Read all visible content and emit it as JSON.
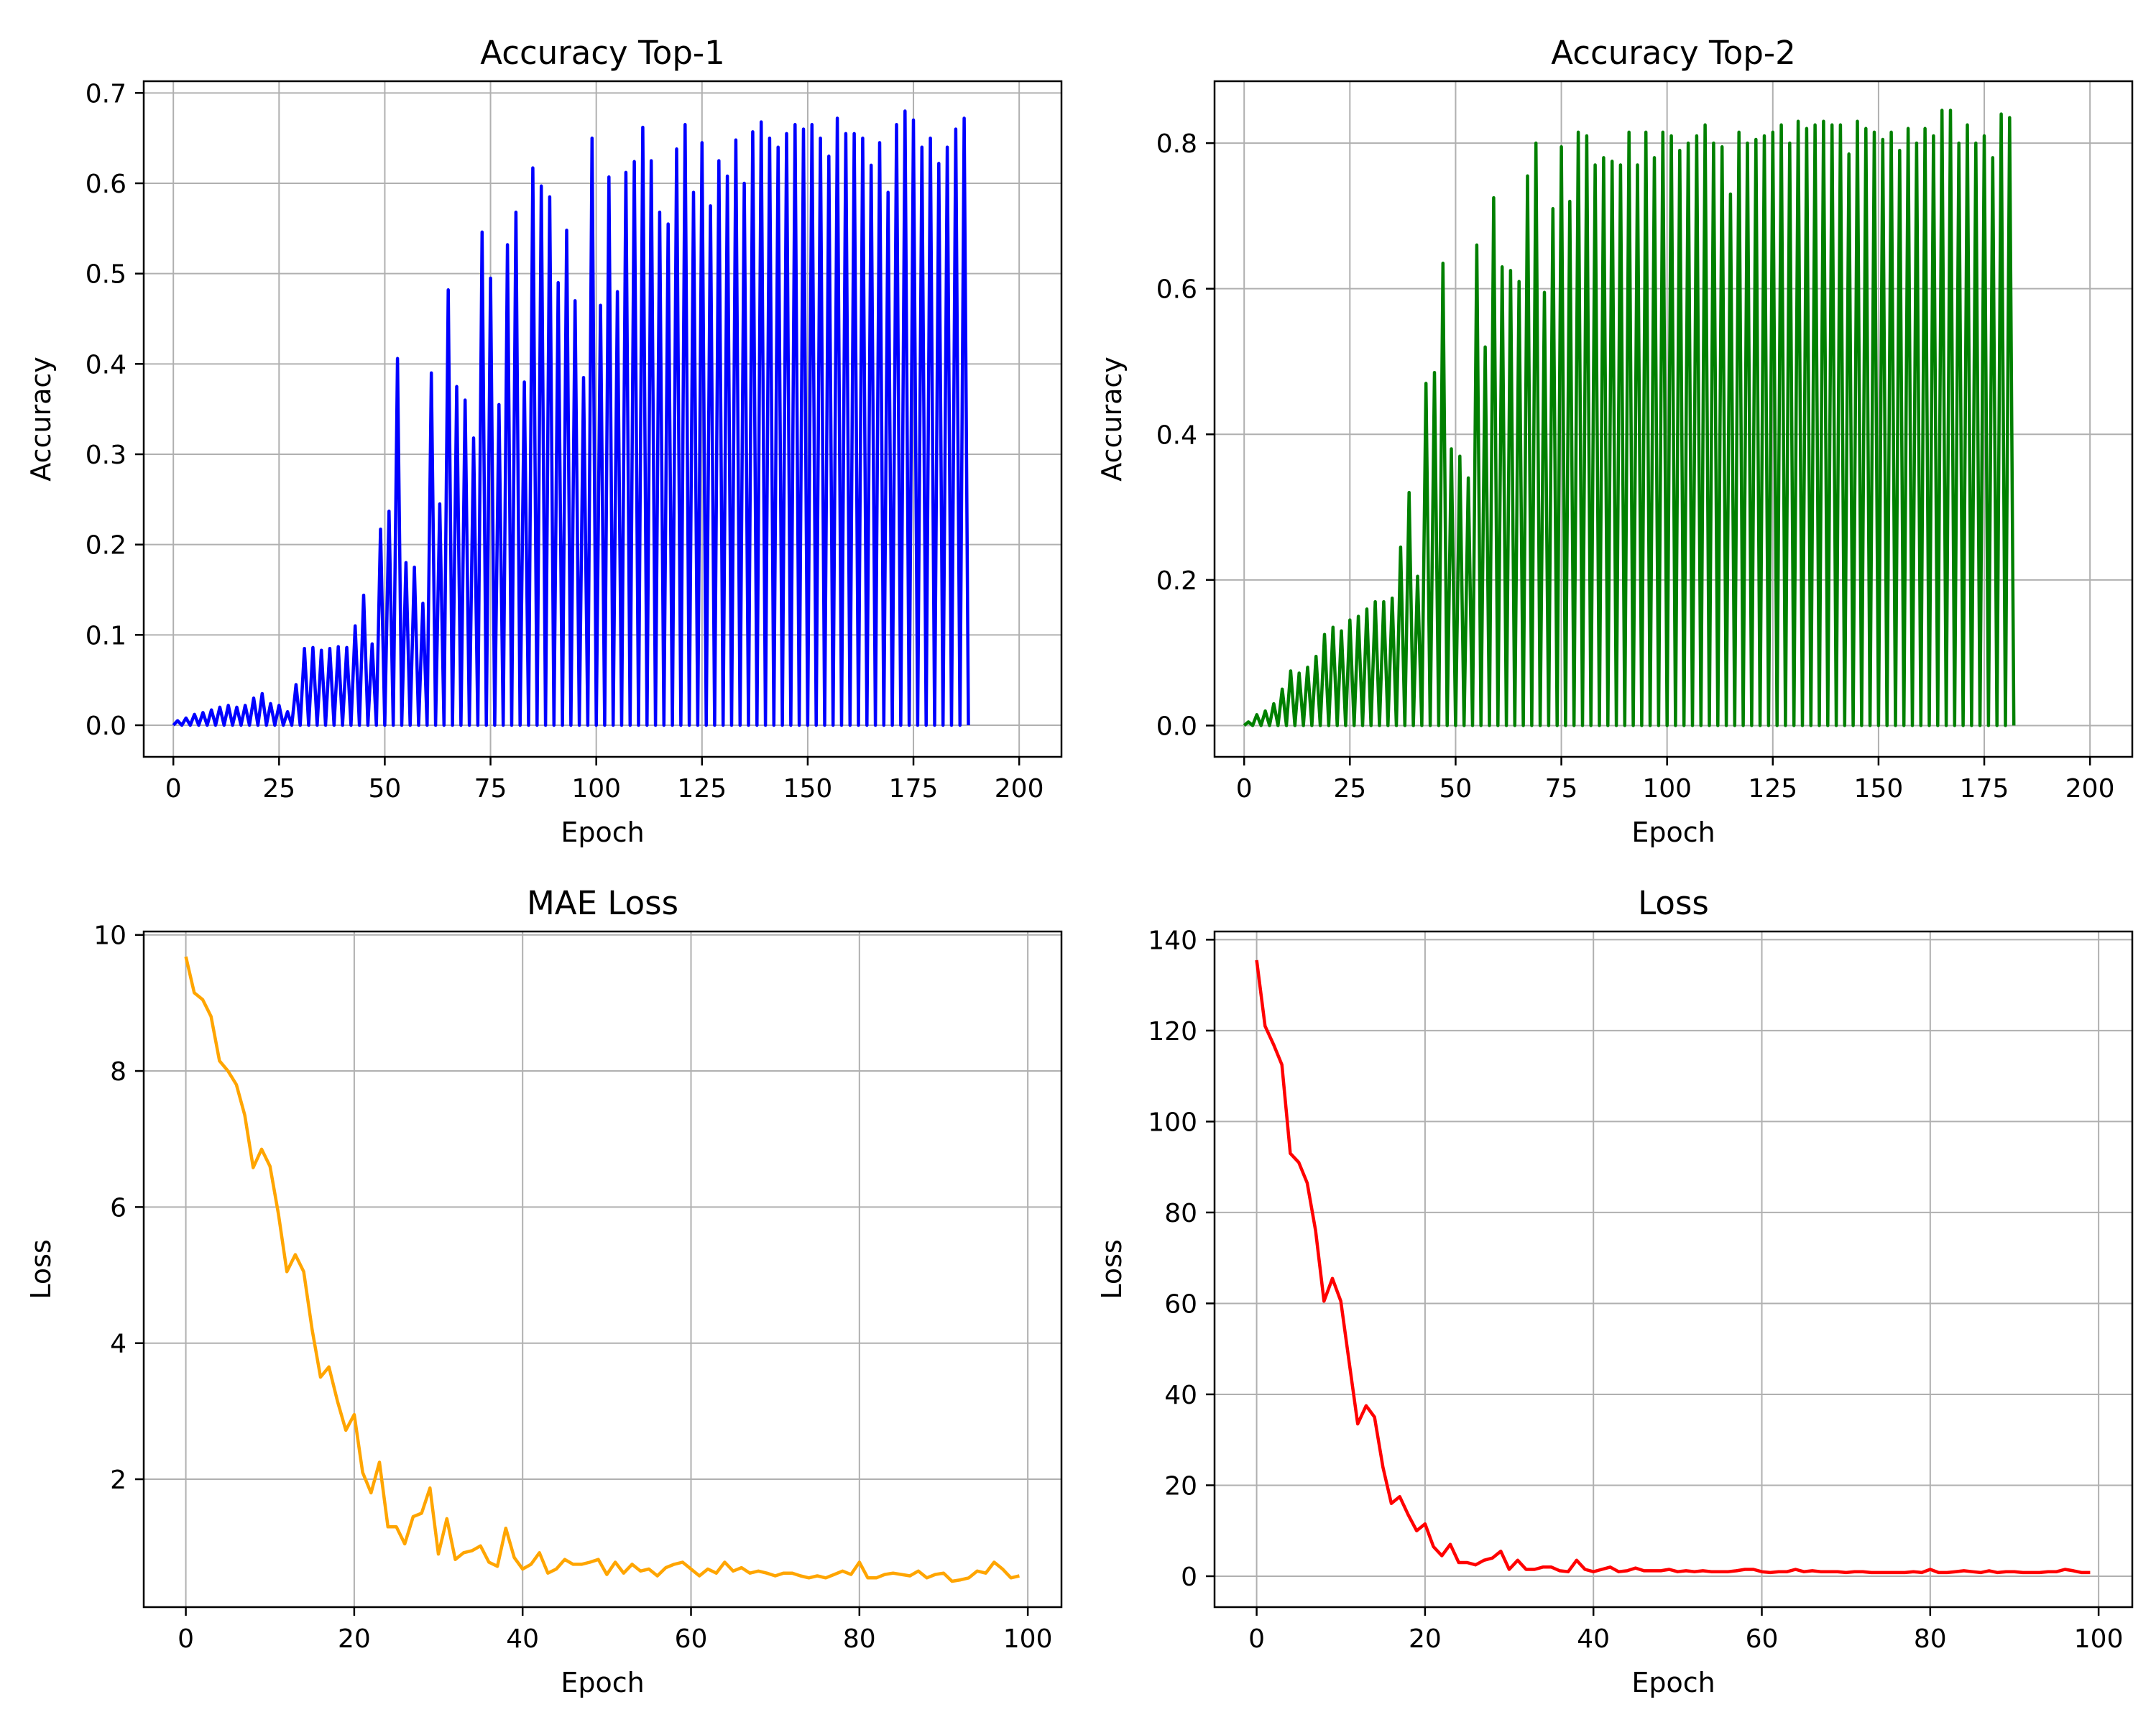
{
  "chart_data": [
    {
      "type": "line",
      "title": "Accuracy Top-1",
      "xlabel": "Epoch",
      "ylabel": "Accuracy",
      "xlim": [
        -7,
        210
      ],
      "ylim": [
        -0.035,
        0.713
      ],
      "xticks": [
        0,
        25,
        50,
        75,
        100,
        125,
        150,
        175,
        200
      ],
      "yticks": [
        0.0,
        0.1,
        0.2,
        0.3,
        0.4,
        0.5,
        0.6,
        0.7
      ],
      "ytick_labels": [
        "0.0",
        "0.1",
        "0.2",
        "0.3",
        "0.4",
        "0.5",
        "0.6",
        "0.7"
      ],
      "grid": true,
      "color": "#0000ff",
      "note_pattern": "oscillating between 0 and the peak value every 2 epochs",
      "series": [
        {
          "x_step": 1,
          "peaks_every": 2,
          "peak_values": [
            0.005,
            0.008,
            0.012,
            0.014,
            0.017,
            0.02,
            0.022,
            0.02,
            0.022,
            0.03,
            0.035,
            0.024,
            0.022,
            0.015,
            0.045,
            0.085,
            0.086,
            0.083,
            0.085,
            0.087,
            0.086,
            0.11,
            0.144,
            0.09,
            0.217,
            0.237,
            0.406,
            0.18,
            0.175,
            0.135,
            0.39,
            0.245,
            0.482,
            0.375,
            0.36,
            0.318,
            0.546,
            0.495,
            0.355,
            0.532,
            0.568,
            0.38,
            0.617,
            0.597,
            0.585,
            0.49,
            0.548,
            0.47,
            0.385,
            0.65,
            0.465,
            0.607,
            0.48,
            0.612,
            0.624,
            0.662,
            0.625,
            0.568,
            0.555,
            0.638,
            0.665,
            0.59,
            0.645,
            0.575,
            0.625,
            0.608,
            0.648,
            0.6,
            0.657,
            0.668,
            0.65,
            0.64,
            0.655,
            0.665,
            0.66,
            0.665,
            0.65,
            0.63,
            0.672,
            0.655,
            0.655,
            0.65,
            0.62,
            0.645,
            0.59,
            0.665,
            0.68,
            0.67,
            0.64,
            0.65,
            0.622,
            0.64,
            0.66,
            0.672
          ]
        }
      ]
    },
    {
      "type": "line",
      "title": "Accuracy Top-2",
      "xlabel": "Epoch",
      "ylabel": "Accuracy",
      "xlim": [
        -7,
        210
      ],
      "ylim": [
        -0.043,
        0.885
      ],
      "xticks": [
        0,
        25,
        50,
        75,
        100,
        125,
        150,
        175,
        200
      ],
      "yticks": [
        0.0,
        0.2,
        0.4,
        0.6,
        0.8
      ],
      "ytick_labels": [
        "0.0",
        "0.2",
        "0.4",
        "0.6",
        "0.8"
      ],
      "grid": true,
      "color": "#008000",
      "series": [
        {
          "x_step": 1,
          "peaks_every": 2,
          "peak_values": [
            0.005,
            0.015,
            0.02,
            0.03,
            0.05,
            0.075,
            0.072,
            0.08,
            0.095,
            0.125,
            0.135,
            0.13,
            0.145,
            0.15,
            0.16,
            0.17,
            0.17,
            0.175,
            0.245,
            0.32,
            0.205,
            0.47,
            0.485,
            0.635,
            0.38,
            0.37,
            0.34,
            0.66,
            0.52,
            0.725,
            0.63,
            0.625,
            0.61,
            0.755,
            0.8,
            0.595,
            0.71,
            0.795,
            0.72,
            0.815,
            0.81,
            0.77,
            0.78,
            0.775,
            0.77,
            0.815,
            0.77,
            0.815,
            0.78,
            0.815,
            0.81,
            0.79,
            0.8,
            0.81,
            0.825,
            0.8,
            0.795,
            0.73,
            0.815,
            0.8,
            0.805,
            0.81,
            0.815,
            0.825,
            0.8,
            0.83,
            0.82,
            0.825,
            0.83,
            0.825,
            0.825,
            0.785,
            0.83,
            0.82,
            0.815,
            0.805,
            0.815,
            0.79,
            0.82,
            0.8,
            0.82,
            0.81,
            0.845,
            0.845,
            0.8,
            0.825,
            0.8,
            0.81,
            0.78,
            0.84,
            0.835
          ]
        }
      ]
    },
    {
      "type": "line",
      "title": "MAE Loss",
      "xlabel": "Epoch",
      "ylabel": "Loss",
      "xlim": [
        -5,
        104
      ],
      "ylim": [
        0.12,
        10.05
      ],
      "xticks": [
        0,
        20,
        40,
        60,
        80,
        100
      ],
      "yticks": [
        2,
        4,
        6,
        8,
        10
      ],
      "ytick_labels": [
        "2",
        "4",
        "6",
        "8",
        "10"
      ],
      "grid": true,
      "color": "#ffa500",
      "series": [
        {
          "x_start": 0,
          "x_step": 1,
          "values": [
            9.68,
            9.15,
            9.05,
            8.8,
            8.15,
            8.0,
            7.8,
            7.35,
            6.58,
            6.85,
            6.6,
            5.9,
            5.05,
            5.3,
            5.05,
            4.2,
            3.5,
            3.65,
            3.15,
            2.72,
            2.95,
            2.1,
            1.8,
            2.25,
            1.3,
            1.3,
            1.05,
            1.45,
            1.5,
            1.87,
            0.9,
            1.42,
            0.82,
            0.92,
            0.95,
            1.02,
            0.78,
            0.72,
            1.28,
            0.85,
            0.68,
            0.75,
            0.92,
            0.62,
            0.68,
            0.82,
            0.75,
            0.75,
            0.78,
            0.82,
            0.6,
            0.78,
            0.62,
            0.75,
            0.65,
            0.68,
            0.58,
            0.7,
            0.75,
            0.78,
            0.68,
            0.58,
            0.68,
            0.62,
            0.78,
            0.65,
            0.7,
            0.62,
            0.65,
            0.62,
            0.58,
            0.62,
            0.62,
            0.58,
            0.55,
            0.58,
            0.55,
            0.6,
            0.65,
            0.6,
            0.78,
            0.55,
            0.55,
            0.6,
            0.62,
            0.6,
            0.58,
            0.65,
            0.55,
            0.6,
            0.62,
            0.5,
            0.52,
            0.55,
            0.65,
            0.62,
            0.78,
            0.68,
            0.55,
            0.58
          ]
        }
      ]
    },
    {
      "type": "line",
      "title": "Loss",
      "xlabel": "Epoch",
      "ylabel": "Loss",
      "xlim": [
        -5,
        104
      ],
      "ylim": [
        -6.8,
        141.8
      ],
      "xticks": [
        0,
        20,
        40,
        60,
        80,
        100
      ],
      "yticks": [
        0,
        20,
        40,
        60,
        80,
        100,
        120,
        140
      ],
      "ytick_labels": [
        "0",
        "20",
        "40",
        "60",
        "80",
        "100",
        "120",
        "140"
      ],
      "grid": true,
      "color": "#ff0000",
      "series": [
        {
          "x_start": 0,
          "x_step": 1,
          "values": [
            135.5,
            121,
            117,
            112.5,
            93,
            91,
            86.5,
            76,
            60.5,
            65.5,
            60.5,
            47,
            33.5,
            37.5,
            35,
            24,
            16,
            17.5,
            13.5,
            10,
            11.5,
            6.5,
            4.5,
            7,
            3,
            3,
            2.5,
            3.5,
            4,
            5.5,
            1.5,
            3.5,
            1.5,
            1.5,
            2,
            2,
            1.2,
            1,
            3.5,
            1.5,
            1,
            1.5,
            2,
            1,
            1.2,
            1.8,
            1.2,
            1.2,
            1.2,
            1.5,
            1,
            1.2,
            1,
            1.2,
            1,
            1,
            1,
            1.2,
            1.5,
            1.5,
            1,
            0.8,
            1,
            1,
            1.5,
            1,
            1.2,
            1,
            1,
            1,
            0.8,
            1,
            1,
            0.8,
            0.8,
            0.8,
            0.8,
            0.8,
            1,
            0.8,
            1.5,
            0.8,
            0.8,
            1,
            1.2,
            1,
            0.8,
            1.2,
            0.8,
            1,
            1,
            0.8,
            0.8,
            0.8,
            1,
            1,
            1.5,
            1.2,
            0.8,
            0.8
          ]
        }
      ]
    }
  ]
}
